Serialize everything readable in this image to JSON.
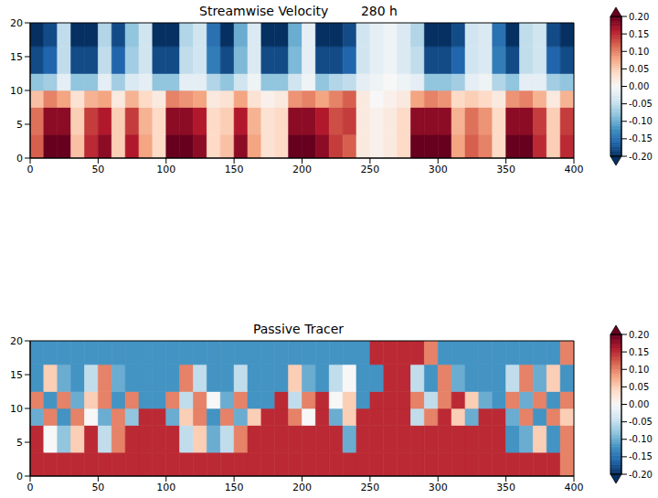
{
  "chart_data": [
    {
      "type": "heatmap",
      "title": "Streamwise Velocity        280 h",
      "xlim": [
        0,
        400
      ],
      "xticks": [
        0,
        50,
        100,
        150,
        200,
        250,
        300,
        350,
        400
      ],
      "ylim": [
        0,
        20
      ],
      "yticks": [
        0,
        5,
        10,
        15,
        20
      ],
      "x_edges": [
        0,
        10,
        20,
        30,
        40,
        50,
        60,
        70,
        80,
        90,
        100,
        110,
        120,
        130,
        140,
        150,
        160,
        170,
        180,
        190,
        200,
        210,
        220,
        230,
        240,
        250,
        260,
        270,
        280,
        290,
        300,
        310,
        320,
        330,
        340,
        350,
        360,
        370,
        380,
        390,
        400
      ],
      "y_edges": [
        0,
        3.5,
        7.5,
        10,
        12.5,
        16.5,
        20
      ],
      "cells": [
        [
          0.12,
          0.2,
          0.2,
          0.06,
          0.15,
          0.18,
          0.05,
          0.16,
          0.08,
          0.04,
          0.2,
          0.2,
          0.18,
          0.04,
          0.06,
          0.18,
          0.08,
          0.03,
          0.04,
          0.2,
          0.2,
          0.18,
          0.14,
          0.12,
          0.02,
          0.01,
          0.02,
          0.04,
          0.2,
          0.2,
          0.2,
          0.08,
          0.12,
          0.1,
          0.04,
          0.2,
          0.2,
          0.15,
          0.05,
          0.15
        ],
        [
          0.11,
          0.18,
          0.18,
          0.05,
          0.14,
          0.16,
          0.05,
          0.14,
          0.07,
          0.04,
          0.18,
          0.18,
          0.16,
          0.04,
          0.05,
          0.16,
          0.07,
          0.03,
          0.04,
          0.18,
          0.18,
          0.16,
          0.13,
          0.14,
          0.02,
          0.01,
          0.02,
          0.04,
          0.18,
          0.18,
          0.18,
          0.07,
          0.11,
          0.09,
          0.04,
          0.18,
          0.18,
          0.14,
          0.05,
          0.14
        ],
        [
          0.06,
          0.1,
          0.08,
          0.03,
          0.07,
          0.08,
          0.02,
          0.07,
          0.04,
          0.02,
          0.1,
          0.09,
          0.08,
          0.02,
          0.03,
          0.08,
          0.03,
          0.01,
          0.02,
          0.09,
          0.1,
          0.08,
          0.1,
          0.12,
          0.02,
          0.0,
          0.01,
          0.02,
          0.08,
          0.1,
          0.09,
          0.04,
          0.05,
          0.04,
          0.02,
          0.09,
          0.1,
          0.07,
          0.02,
          0.07
        ],
        [
          -0.08,
          -0.07,
          -0.02,
          -0.08,
          -0.08,
          -0.02,
          -0.07,
          -0.03,
          -0.02,
          -0.08,
          -0.08,
          -0.02,
          -0.02,
          -0.06,
          -0.08,
          -0.04,
          -0.01,
          -0.08,
          -0.08,
          -0.04,
          -0.01,
          -0.08,
          -0.06,
          -0.05,
          -0.02,
          -0.01,
          0.0,
          -0.01,
          -0.02,
          -0.08,
          -0.08,
          -0.07,
          -0.02,
          -0.01,
          -0.06,
          -0.08,
          -0.02,
          -0.02,
          -0.07,
          -0.08
        ],
        [
          -0.18,
          -0.16,
          -0.05,
          -0.18,
          -0.18,
          -0.05,
          -0.16,
          -0.07,
          -0.04,
          -0.18,
          -0.18,
          -0.05,
          -0.04,
          -0.14,
          -0.18,
          -0.09,
          -0.03,
          -0.18,
          -0.18,
          -0.09,
          -0.02,
          -0.18,
          -0.18,
          -0.16,
          -0.04,
          -0.02,
          -0.01,
          -0.03,
          -0.05,
          -0.18,
          -0.18,
          -0.16,
          -0.04,
          -0.03,
          -0.14,
          -0.18,
          -0.05,
          -0.04,
          -0.16,
          -0.18
        ],
        [
          -0.2,
          -0.18,
          -0.05,
          -0.2,
          -0.2,
          -0.06,
          -0.18,
          -0.08,
          -0.04,
          -0.2,
          -0.2,
          -0.06,
          -0.04,
          -0.15,
          -0.2,
          -0.1,
          -0.03,
          -0.2,
          -0.2,
          -0.1,
          -0.02,
          -0.2,
          -0.2,
          -0.18,
          -0.04,
          -0.02,
          -0.01,
          -0.03,
          -0.06,
          -0.2,
          -0.2,
          -0.18,
          -0.04,
          -0.03,
          -0.15,
          -0.2,
          -0.05,
          -0.04,
          -0.18,
          -0.2
        ]
      ],
      "colorbar": {
        "range": [
          -0.2,
          0.2
        ],
        "ticks": [
          {
            "value": -0.2,
            "label": "-0.20"
          },
          {
            "value": -0.15,
            "label": "-0.15"
          },
          {
            "value": -0.1,
            "label": "-0.10"
          },
          {
            "value": -0.05,
            "label": "-0.05"
          },
          {
            "value": 0,
            "label": "0.00"
          },
          {
            "value": 0.05,
            "label": "0.05"
          },
          {
            "value": 0.1,
            "label": "0.10"
          },
          {
            "value": 0.15,
            "label": "0.15"
          },
          {
            "value": 0.2,
            "label": "0.20"
          }
        ]
      }
    },
    {
      "type": "heatmap",
      "title": "Passive Tracer",
      "xlim": [
        0,
        400
      ],
      "xticks": [
        0,
        50,
        100,
        150,
        200,
        250,
        300,
        350,
        400
      ],
      "ylim": [
        0,
        20
      ],
      "yticks": [
        0,
        5,
        10,
        15,
        20
      ],
      "x_edges": [
        0,
        10,
        20,
        30,
        40,
        50,
        60,
        70,
        80,
        90,
        100,
        110,
        120,
        130,
        140,
        150,
        160,
        170,
        180,
        190,
        200,
        210,
        220,
        230,
        240,
        250,
        260,
        270,
        280,
        290,
        300,
        310,
        320,
        330,
        340,
        350,
        360,
        370,
        380,
        390,
        400
      ],
      "y_edges": [
        0,
        3.5,
        7.5,
        10,
        12.5,
        16.5,
        20
      ],
      "cells": [
        [
          0.15,
          0.15,
          0.15,
          0.15,
          0.15,
          0.15,
          0.15,
          0.15,
          0.15,
          0.15,
          0.15,
          0.15,
          0.15,
          0.15,
          0.15,
          0.15,
          0.15,
          0.15,
          0.15,
          0.15,
          0.15,
          0.15,
          0.15,
          0.15,
          0.15,
          0.15,
          0.15,
          0.15,
          0.15,
          0.15,
          0.15,
          0.15,
          0.15,
          0.15,
          0.15,
          0.15,
          0.15,
          0.15,
          0.15,
          0.1
        ],
        [
          0.15,
          0.0,
          -0.08,
          0.05,
          0.15,
          -0.05,
          0.1,
          0.15,
          0.15,
          0.15,
          0.15,
          -0.05,
          0.05,
          -0.1,
          -0.05,
          0.1,
          0.15,
          0.15,
          0.15,
          0.15,
          0.15,
          0.15,
          0.15,
          -0.1,
          0.15,
          0.15,
          0.15,
          0.15,
          0.15,
          0.15,
          0.15,
          0.15,
          0.15,
          0.15,
          0.15,
          -0.12,
          -0.1,
          0.05,
          -0.12,
          0.1
        ],
        [
          -0.1,
          0.1,
          -0.12,
          0.1,
          0.0,
          -0.1,
          0.1,
          -0.08,
          0.15,
          0.15,
          -0.1,
          0.05,
          0.1,
          -0.12,
          0.1,
          -0.1,
          0.05,
          0.15,
          0.15,
          0.1,
          0.0,
          0.15,
          -0.1,
          0.05,
          0.15,
          0.15,
          0.15,
          0.15,
          -0.05,
          0.1,
          0.15,
          0.05,
          -0.1,
          0.15,
          0.15,
          -0.1,
          0.1,
          -0.12,
          0.1,
          0.05
        ],
        [
          0.1,
          -0.12,
          0.1,
          -0.1,
          0.05,
          0.1,
          -0.12,
          0.1,
          -0.12,
          -0.12,
          0.1,
          -0.05,
          0.1,
          0.0,
          -0.1,
          0.1,
          -0.12,
          -0.12,
          0.15,
          -0.05,
          0.1,
          0.15,
          0.0,
          0.05,
          -0.12,
          0.15,
          0.15,
          0.15,
          0.1,
          -0.05,
          0.1,
          0.15,
          0.05,
          -0.1,
          -0.12,
          0.1,
          -0.1,
          0.1,
          -0.12,
          0.1
        ],
        [
          -0.12,
          0.05,
          -0.1,
          -0.12,
          -0.05,
          0.1,
          -0.1,
          -0.12,
          -0.12,
          -0.12,
          -0.12,
          0.1,
          -0.05,
          -0.12,
          -0.12,
          -0.05,
          -0.12,
          -0.12,
          -0.12,
          0.05,
          -0.1,
          -0.12,
          -0.05,
          0.0,
          -0.12,
          -0.12,
          0.15,
          0.15,
          -0.05,
          -0.12,
          0.1,
          -0.1,
          -0.12,
          -0.12,
          -0.12,
          -0.05,
          0.1,
          -0.1,
          0.05,
          -0.12
        ],
        [
          -0.12,
          -0.12,
          -0.12,
          -0.12,
          -0.12,
          -0.12,
          -0.12,
          -0.12,
          -0.12,
          -0.12,
          -0.12,
          -0.12,
          -0.12,
          -0.12,
          -0.12,
          -0.12,
          -0.12,
          -0.12,
          -0.12,
          -0.12,
          -0.12,
          -0.12,
          -0.12,
          -0.12,
          -0.12,
          0.15,
          0.15,
          0.15,
          0.15,
          0.1,
          -0.12,
          -0.12,
          -0.12,
          -0.12,
          -0.12,
          -0.12,
          -0.12,
          -0.12,
          -0.12,
          0.1
        ]
      ],
      "colorbar": {
        "range": [
          -0.2,
          0.2
        ],
        "ticks": [
          {
            "value": -0.2,
            "label": "-0.20"
          },
          {
            "value": -0.15,
            "label": "-0.15"
          },
          {
            "value": -0.1,
            "label": "-0.10"
          },
          {
            "value": -0.05,
            "label": "-0.05"
          },
          {
            "value": 0,
            "label": "0.00"
          },
          {
            "value": 0.05,
            "label": "0.05"
          },
          {
            "value": 0.1,
            "label": "0.10"
          },
          {
            "value": 0.15,
            "label": "0.15"
          },
          {
            "value": 0.2,
            "label": "0.20"
          }
        ]
      }
    }
  ]
}
